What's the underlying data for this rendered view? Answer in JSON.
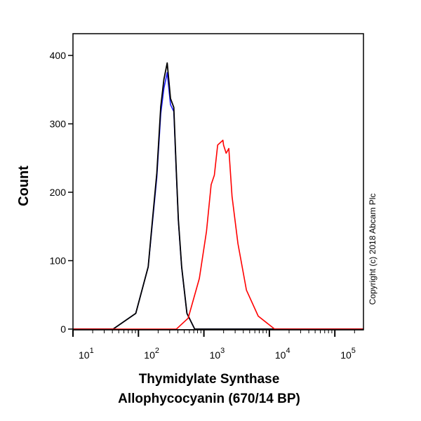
{
  "chart_data": {
    "type": "line",
    "title": "",
    "xlabel": [
      "Thymidylate Synthase",
      "Allophycocyanin (670/14 BP)"
    ],
    "ylabel": "Count",
    "x_scale": "log",
    "xlim": [
      10,
      280000
    ],
    "ylim": [
      0,
      432
    ],
    "grid": false,
    "x_ticks": [
      {
        "base": "10",
        "exp": "1"
      },
      {
        "base": "10",
        "exp": "2"
      },
      {
        "base": "10",
        "exp": "3"
      },
      {
        "base": "10",
        "exp": "4"
      },
      {
        "base": "10",
        "exp": "5"
      }
    ],
    "y_ticks": [
      "0",
      "100",
      "200",
      "300",
      "400"
    ],
    "annotation": "Copyright (c) 2018 Abcam Plc",
    "series": [
      {
        "color": "#1a1aff",
        "x": [
          41,
          91,
          141,
          158,
          191,
          219,
          245,
          275,
          309,
          347,
          380,
          407,
          457,
          550,
          724
        ],
        "y": [
          0,
          23,
          91,
          140,
          222,
          315,
          352,
          375,
          328,
          318,
          225,
          158,
          90,
          23,
          0
        ]
      },
      {
        "color": "#000000",
        "x": [
          41,
          91,
          141,
          158,
          191,
          219,
          245,
          275,
          309,
          347,
          380,
          407,
          457,
          550,
          724
        ],
        "y": [
          0,
          23,
          91,
          143,
          228,
          325,
          365,
          389,
          337,
          324,
          228,
          160,
          91,
          23,
          0
        ]
      },
      {
        "color": "#ff0000",
        "x": [
          380,
          575,
          851,
          1096,
          1288,
          1445,
          1622,
          1950,
          1995,
          2188,
          2399,
          2692,
          3311,
          4467,
          6761,
          12023
        ],
        "y": [
          0,
          16,
          74,
          143,
          211,
          225,
          269,
          276,
          269,
          257,
          264,
          194,
          125,
          57,
          19,
          0
        ]
      }
    ]
  }
}
